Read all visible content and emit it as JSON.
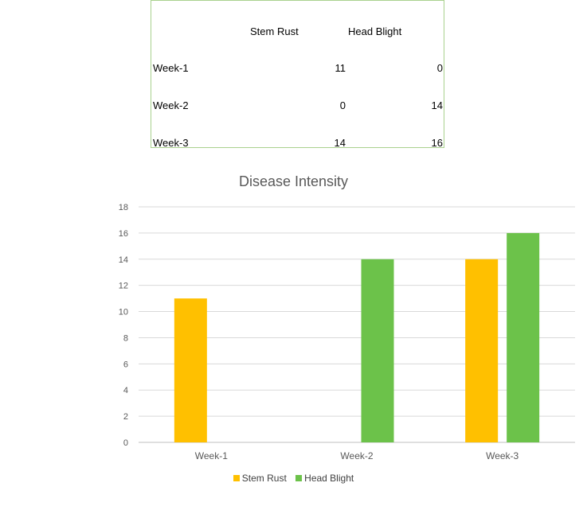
{
  "table": {
    "headers": [
      "",
      "Stem Rust",
      "Head Blight"
    ],
    "rows": [
      {
        "label": "Week-1",
        "stem_rust": "11",
        "head_blight": "0"
      },
      {
        "label": "Week-2",
        "stem_rust": "0",
        "head_blight": "14"
      },
      {
        "label": "Week-3",
        "stem_rust": "14",
        "head_blight": "16"
      }
    ]
  },
  "chart_data": {
    "type": "bar",
    "title": "Disease Intensity",
    "xlabel": "",
    "ylabel": "",
    "categories": [
      "Week-1",
      "Week-2",
      "Week-3"
    ],
    "series": [
      {
        "name": "Stem Rust",
        "values": [
          11,
          0,
          14
        ],
        "color": "#ffc000"
      },
      {
        "name": "Head Blight",
        "values": [
          0,
          14,
          16
        ],
        "color": "#6cc24a"
      }
    ],
    "ylim": [
      0,
      18
    ],
    "yticks": [
      "0",
      "2",
      "4",
      "6",
      "8",
      "10",
      "12",
      "14",
      "16",
      "18"
    ],
    "grid": true,
    "legend_position": "bottom"
  }
}
